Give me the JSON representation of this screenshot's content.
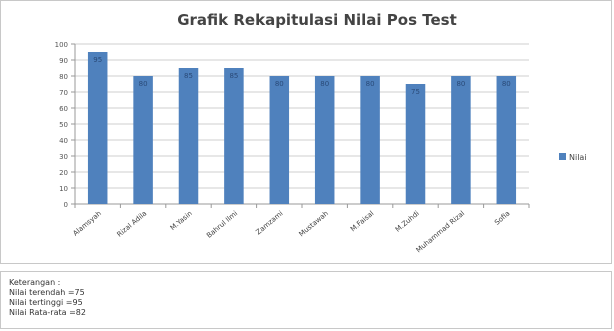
{
  "chart_data": {
    "type": "bar",
    "title": "Grafik Rekapitulasi Nilai Pos Test",
    "xlabel": "",
    "ylabel": "",
    "categories": [
      "Alamsyah",
      "Rizal Adila",
      "M.Yasin",
      "Bahrul Ilmi",
      "Zamzami",
      "Mustawah",
      "M.Faisal",
      "M.Zuhdi",
      "Muhammad Rizal",
      "Sofia"
    ],
    "series": [
      {
        "name": "Nilai",
        "values": [
          95,
          80,
          85,
          85,
          80,
          80,
          80,
          75,
          80,
          80
        ],
        "color": "#4f81bd"
      }
    ],
    "data_labels": [
      "95",
      "80",
      "85",
      "85",
      "80",
      "80",
      "80",
      "75",
      "80",
      "80"
    ],
    "yticks": [
      "0",
      "10",
      "20",
      "30",
      "40",
      "50",
      "60",
      "70",
      "80",
      "90",
      "100"
    ],
    "ylim": [
      0,
      100
    ],
    "grid": true,
    "legend": "right"
  },
  "notes": {
    "heading": "Keterangan :",
    "lines": [
      "Nilai terendah =75",
      "Nilai tertinggi   =95",
      "Nilai Rata-rata =82"
    ]
  }
}
